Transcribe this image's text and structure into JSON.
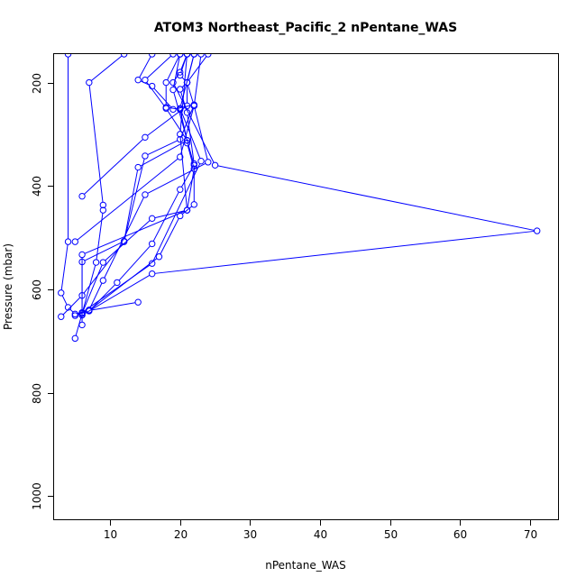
{
  "chart_data": {
    "type": "line",
    "title": "ATOM3 Northeast_Pacific_2 nPentane_WAS",
    "xlabel": "nPentane_WAS",
    "ylabel": "Pressure (mbar)",
    "xlim": [
      2,
      74
    ],
    "ylim": [
      1045,
      145
    ],
    "y_reversed": true,
    "x_ticks": [
      10,
      20,
      30,
      40,
      50,
      60,
      70
    ],
    "y_ticks": [
      200,
      400,
      600,
      800,
      1000
    ],
    "color": "#0000ff",
    "marker": "open-circle",
    "grid": false,
    "legend": "none",
    "series": [
      {
        "points": [
          [
            4,
            145
          ],
          [
            4,
            508
          ],
          [
            3,
            607
          ],
          [
            4,
            635
          ],
          [
            5,
            648
          ],
          [
            7,
            641
          ],
          [
            14,
            625
          ]
        ]
      },
      {
        "points": [
          [
            12,
            145
          ],
          [
            7,
            200
          ],
          [
            9,
            437
          ],
          [
            9,
            447
          ],
          [
            8,
            548
          ],
          [
            6,
            647
          ],
          [
            5,
            695
          ]
        ]
      },
      {
        "points": [
          [
            16,
            145
          ],
          [
            14,
            195
          ],
          [
            16,
            207
          ],
          [
            19,
            252
          ],
          [
            22,
            243
          ],
          [
            20,
            310
          ],
          [
            15,
            342
          ],
          [
            12,
            508
          ],
          [
            6,
            612
          ],
          [
            3,
            653
          ]
        ]
      },
      {
        "points": [
          [
            19,
            145
          ],
          [
            15,
            195
          ],
          [
            18,
            250
          ],
          [
            21,
            312
          ],
          [
            14,
            364
          ],
          [
            12,
            507
          ],
          [
            6,
            547
          ],
          [
            6,
            669
          ]
        ]
      },
      {
        "points": [
          [
            20,
            145
          ],
          [
            18,
            200
          ],
          [
            18,
            248
          ],
          [
            20,
            252
          ],
          [
            21,
            312
          ],
          [
            21,
            317
          ],
          [
            22,
            367
          ],
          [
            21,
            447
          ],
          [
            16,
            463
          ],
          [
            9,
            548
          ],
          [
            6,
            647
          ]
        ]
      },
      {
        "points": [
          [
            21,
            145
          ],
          [
            20,
            186
          ],
          [
            21,
            200
          ],
          [
            20,
            213
          ],
          [
            21,
            258
          ],
          [
            22,
            357
          ],
          [
            22,
            436
          ],
          [
            20,
            458
          ],
          [
            17,
            537
          ],
          [
            7,
            641
          ],
          [
            5,
            651
          ]
        ]
      },
      {
        "points": [
          [
            22,
            145
          ],
          [
            21,
            200
          ],
          [
            21,
            245
          ],
          [
            15,
            306
          ],
          [
            6,
            420
          ]
        ]
      },
      {
        "points": [
          [
            24,
            145
          ],
          [
            21,
            200
          ],
          [
            22,
            245
          ],
          [
            20,
            344
          ],
          [
            5,
            508
          ]
        ]
      },
      {
        "points": [
          [
            23,
            145
          ],
          [
            22,
            245
          ],
          [
            24,
            354
          ],
          [
            15,
            417
          ],
          [
            9,
            583
          ],
          [
            7,
            640
          ]
        ]
      },
      {
        "points": [
          [
            21,
            145
          ],
          [
            20,
            180
          ],
          [
            19,
            200
          ],
          [
            25,
            360
          ],
          [
            71,
            487
          ],
          [
            16,
            570
          ],
          [
            6,
            650
          ]
        ]
      },
      {
        "points": [
          [
            20,
            145
          ],
          [
            19,
            214
          ],
          [
            22,
            360
          ],
          [
            20,
            407
          ],
          [
            16,
            512
          ],
          [
            11,
            587
          ],
          [
            7,
            642
          ]
        ]
      },
      {
        "points": [
          [
            22,
            145
          ],
          [
            20,
            250
          ],
          [
            23,
            352
          ],
          [
            16,
            550
          ],
          [
            6,
            645
          ]
        ]
      },
      {
        "points": [
          [
            21,
            145
          ],
          [
            20,
            300
          ],
          [
            21,
            447
          ],
          [
            6,
            533
          ],
          [
            6,
            650
          ]
        ]
      }
    ]
  }
}
